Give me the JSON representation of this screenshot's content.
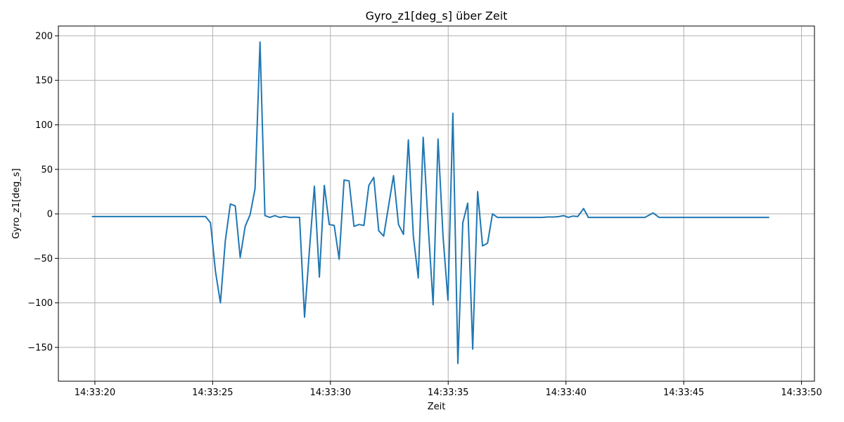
{
  "chart_data": {
    "type": "line",
    "title": "Gyro_z1[deg_s] über Zeit",
    "xlabel": "Zeit",
    "ylabel": "Gyro_z1[deg_s]",
    "xlim": [
      "14:33:18.45",
      "14:33:50.55"
    ],
    "ylim": [
      -188,
      211
    ],
    "x_ticks": [
      "14:33:20",
      "14:33:25",
      "14:33:30",
      "14:33:35",
      "14:33:40",
      "14:33:45",
      "14:33:50"
    ],
    "y_ticks": [
      200,
      150,
      100,
      50,
      0,
      -50,
      -100,
      -150
    ],
    "y_tick_labels": [
      "200",
      "150",
      "100",
      "50",
      "0",
      "−50",
      "−100",
      "−150"
    ],
    "grid": true,
    "line_color": "#1f77b4",
    "series": [
      {
        "points": [
          [
            "14:33:19.9",
            -3
          ],
          [
            "14:33:20.5",
            -3
          ],
          [
            "14:33:21.0",
            -3
          ],
          [
            "14:33:21.5",
            -3
          ],
          [
            "14:33:22.0",
            -3
          ],
          [
            "14:33:22.5",
            -3
          ],
          [
            "14:33:23.0",
            -3
          ],
          [
            "14:33:23.5",
            -3
          ],
          [
            "14:33:24.0",
            -3
          ],
          [
            "14:33:24.5",
            -3
          ],
          [
            "14:33:24.70",
            -3
          ],
          [
            "14:33:24.91",
            -10
          ],
          [
            "14:33:25.12",
            -65
          ],
          [
            "14:33:25.33",
            -100
          ],
          [
            "14:33:25.54",
            -30
          ],
          [
            "14:33:25.75",
            11
          ],
          [
            "14:33:25.96",
            9
          ],
          [
            "14:33:26.17",
            -49
          ],
          [
            "14:33:26.38",
            -14
          ],
          [
            "14:33:26.59",
            -1
          ],
          [
            "14:33:26.80",
            28
          ],
          [
            "14:33:27.01",
            193
          ],
          [
            "14:33:27.22",
            -2
          ],
          [
            "14:33:27.43",
            -4
          ],
          [
            "14:33:27.64",
            -2
          ],
          [
            "14:33:27.85",
            -4
          ],
          [
            "14:33:28.06",
            -3
          ],
          [
            "14:33:28.27",
            -4
          ],
          [
            "14:33:28.48",
            -4
          ],
          [
            "14:33:28.69",
            -4
          ],
          [
            "14:33:28.90",
            -116
          ],
          [
            "14:33:29.11",
            -40
          ],
          [
            "14:33:29.32",
            31
          ],
          [
            "14:33:29.53",
            -71
          ],
          [
            "14:33:29.74",
            32
          ],
          [
            "14:33:29.95",
            -12
          ],
          [
            "14:33:30.16",
            -13
          ],
          [
            "14:33:30.37",
            -51
          ],
          [
            "14:33:30.58",
            38
          ],
          [
            "14:33:30.79",
            37
          ],
          [
            "14:33:31.00",
            -14
          ],
          [
            "14:33:31.21",
            -12
          ],
          [
            "14:33:31.42",
            -13
          ],
          [
            "14:33:31.63",
            32
          ],
          [
            "14:33:31.84",
            41
          ],
          [
            "14:33:32.05",
            -19
          ],
          [
            "14:33:32.26",
            -25
          ],
          [
            "14:33:32.47",
            9
          ],
          [
            "14:33:32.68",
            43
          ],
          [
            "14:33:32.89",
            -12
          ],
          [
            "14:33:33.10",
            -23
          ],
          [
            "14:33:33.31",
            83
          ],
          [
            "14:33:33.52",
            -25
          ],
          [
            "14:33:33.73",
            -72
          ],
          [
            "14:33:33.94",
            86
          ],
          [
            "14:33:34.15",
            -13
          ],
          [
            "14:33:34.36",
            -102
          ],
          [
            "14:33:34.57",
            84
          ],
          [
            "14:33:34.78",
            -25
          ],
          [
            "14:33:34.99",
            -97
          ],
          [
            "14:33:35.20",
            113
          ],
          [
            "14:33:35.41",
            -168
          ],
          [
            "14:33:35.62",
            -10
          ],
          [
            "14:33:35.83",
            12
          ],
          [
            "14:33:36.04",
            -152
          ],
          [
            "14:33:36.25",
            25
          ],
          [
            "14:33:36.46",
            -36
          ],
          [
            "14:33:36.67",
            -33
          ],
          [
            "14:33:36.88",
            0
          ],
          [
            "14:33:37.09",
            -4
          ],
          [
            "14:33:37.5",
            -4
          ],
          [
            "14:33:38.0",
            -4
          ],
          [
            "14:33:38.5",
            -4
          ],
          [
            "14:33:39.0",
            -4
          ],
          [
            "14:33:39.2",
            -3.5
          ],
          [
            "14:33:39.5",
            -3.5
          ],
          [
            "14:33:39.7",
            -3
          ],
          [
            "14:33:39.9",
            -2
          ],
          [
            "14:33:40.1",
            -4
          ],
          [
            "14:33:40.3",
            -2.5
          ],
          [
            "14:33:40.5",
            -3
          ],
          [
            "14:33:40.75",
            6
          ],
          [
            "14:33:40.95",
            -4
          ],
          [
            "14:33:41.5",
            -4
          ],
          [
            "14:33:42.0",
            -4
          ],
          [
            "14:33:42.5",
            -4
          ],
          [
            "14:33:43.0",
            -4
          ],
          [
            "14:33:43.35",
            -4
          ],
          [
            "14:33:43.70",
            1
          ],
          [
            "14:33:43.95",
            -4
          ],
          [
            "14:33:44.5",
            -4
          ],
          [
            "14:33:45.0",
            -4
          ],
          [
            "14:33:46.0",
            -4
          ],
          [
            "14:33:47.0",
            -4
          ],
          [
            "14:33:48.0",
            -4
          ],
          [
            "14:33:48.6",
            -4
          ]
        ]
      }
    ]
  }
}
